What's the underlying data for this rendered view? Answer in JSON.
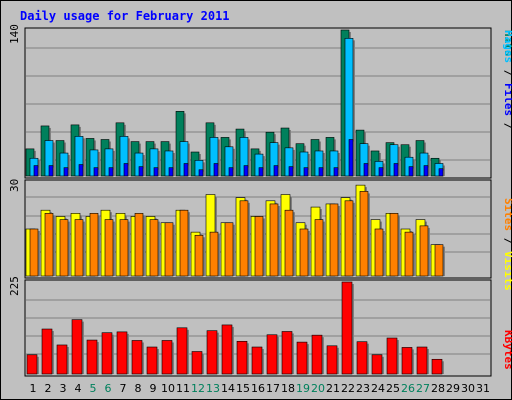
{
  "chart_data": [
    {
      "type": "bar",
      "title": "Daily usage for February 2011",
      "ymax_label": "140",
      "right_label": {
        "pages": "Pages",
        "sep1": " / ",
        "files": "Files",
        "sep2": " / ",
        "hits": "Hits"
      },
      "categories": [
        "1",
        "2",
        "3",
        "4",
        "5",
        "6",
        "7",
        "8",
        "9",
        "10",
        "11",
        "12",
        "13",
        "14",
        "15",
        "16",
        "17",
        "18",
        "19",
        "20",
        "21",
        "22",
        "23",
        "24",
        "25",
        "26",
        "27",
        "28",
        "29",
        "30",
        "31"
      ],
      "ylim": [
        0,
        140
      ],
      "series": [
        {
          "name": "Hits",
          "color": "#00805c",
          "values": [
            26,
            48,
            34,
            49,
            36,
            35,
            51,
            33,
            33,
            33,
            62,
            23,
            51,
            37,
            45,
            26,
            42,
            46,
            31,
            35,
            37,
            140,
            44,
            24,
            32,
            30,
            34,
            17,
            0,
            0,
            0
          ]
        },
        {
          "name": "Files",
          "color": "#00bfff",
          "values": [
            17,
            34,
            22,
            38,
            25,
            26,
            38,
            22,
            26,
            24,
            33,
            15,
            37,
            28,
            37,
            21,
            32,
            27,
            23,
            24,
            24,
            132,
            31,
            14,
            30,
            18,
            22,
            12,
            0,
            0,
            0
          ]
        },
        {
          "name": "Pages",
          "color": "#0000ff",
          "values": [
            10,
            10,
            8,
            11,
            8,
            8,
            12,
            9,
            8,
            8,
            12,
            6,
            12,
            8,
            10,
            8,
            10,
            9,
            8,
            8,
            8,
            35,
            12,
            8,
            12,
            9,
            10,
            7,
            0,
            0,
            0
          ]
        }
      ]
    },
    {
      "type": "bar",
      "ymax_label": "30",
      "right_label": {
        "sites": "Sites",
        "sep": " / ",
        "visits": "Visits"
      },
      "categories": [
        "1",
        "2",
        "3",
        "4",
        "5",
        "6",
        "7",
        "8",
        "9",
        "10",
        "11",
        "12",
        "13",
        "14",
        "15",
        "16",
        "17",
        "18",
        "19",
        "20",
        "21",
        "22",
        "23",
        "24",
        "25",
        "26",
        "27",
        "28",
        "29",
        "30",
        "31"
      ],
      "ylim": [
        0,
        30
      ],
      "series": [
        {
          "name": "Visits",
          "color": "#ffff00",
          "values": [
            15,
            21,
            19,
            20,
            19,
            21,
            20,
            19,
            19,
            17,
            21,
            14,
            26,
            17,
            25,
            19,
            24,
            26,
            17,
            22,
            23,
            25,
            29,
            18,
            20,
            15,
            18,
            10,
            0,
            0,
            0
          ]
        },
        {
          "name": "Sites",
          "color": "#ff8000",
          "values": [
            15,
            20,
            18,
            18,
            20,
            18,
            18,
            20,
            18,
            17,
            21,
            13,
            14,
            17,
            24,
            19,
            23,
            21,
            15,
            18,
            23,
            24,
            27,
            15,
            20,
            14,
            16,
            10,
            0,
            0,
            0
          ]
        }
      ]
    },
    {
      "type": "bar",
      "ymax_label": "225",
      "right_label": {
        "kbytes": "KBytes"
      },
      "categories": [
        "1",
        "2",
        "3",
        "4",
        "5",
        "6",
        "7",
        "8",
        "9",
        "10",
        "11",
        "12",
        "13",
        "14",
        "15",
        "16",
        "17",
        "18",
        "19",
        "20",
        "21",
        "22",
        "23",
        "24",
        "25",
        "26",
        "27",
        "28",
        "29",
        "30",
        "31"
      ],
      "ylim": [
        0,
        225
      ],
      "series": [
        {
          "name": "KBytes",
          "color": "#ff0000",
          "values": [
            47,
            110,
            71,
            133,
            83,
            101,
            103,
            82,
            66,
            82,
            113,
            55,
            106,
            120,
            80,
            66,
            96,
            104,
            78,
            95,
            69,
            225,
            79,
            47,
            88,
            65,
            66,
            36,
            0,
            0,
            0
          ]
        }
      ]
    }
  ],
  "weekend_days": [
    "5",
    "6",
    "12",
    "13",
    "19",
    "20",
    "26",
    "27"
  ],
  "colors": {
    "title": "#0000ff",
    "grid": "#808080",
    "frame": "#000000",
    "weekday_label": "#000000",
    "weekend_label": "#00805c"
  }
}
